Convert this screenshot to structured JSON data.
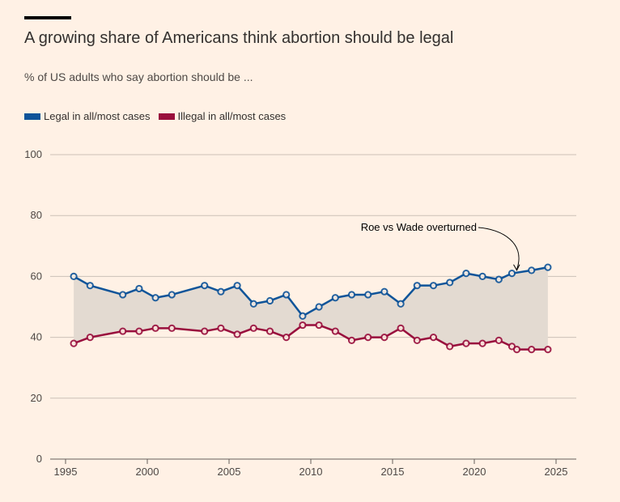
{
  "title": "A growing share of Americans think abortion should be legal",
  "subtitle": "% of US adults who say abortion should be ...",
  "colors": {
    "legal": "#0F5499",
    "illegal": "#990F3D",
    "band": "#E3DAD1",
    "grid": "#CCC1B7",
    "marker_fill": "#FFF1E5"
  },
  "chart_data": {
    "type": "line",
    "xlim": [
      1994,
      2026.5
    ],
    "ylim": [
      0,
      100
    ],
    "x_ticks": [
      1995,
      2000,
      2005,
      2010,
      2015,
      2020,
      2025
    ],
    "y_ticks": [
      0,
      20,
      40,
      60,
      80,
      100
    ],
    "legend_position": "top-left",
    "grid": true,
    "series": [
      {
        "name": "Legal in all/most cases",
        "color": "#0F5499",
        "x": [
          1995.5,
          1996.5,
          1998.5,
          1999.5,
          2000.5,
          2001.5,
          2003.5,
          2004.5,
          2005.5,
          2006.5,
          2007.5,
          2008.5,
          2009.5,
          2010.5,
          2011.5,
          2012.5,
          2013.5,
          2014.5,
          2015.5,
          2016.5,
          2017.5,
          2018.5,
          2019.5,
          2020.5,
          2021.5,
          2022.3,
          2023.5,
          2024.5
        ],
        "y": [
          60,
          57,
          54,
          56,
          53,
          54,
          57,
          55,
          57,
          51,
          52,
          54,
          47,
          50,
          53,
          54,
          54,
          55,
          51,
          57,
          57,
          58,
          61,
          60,
          59,
          61,
          62,
          63
        ]
      },
      {
        "name": "Illegal in all/most cases",
        "color": "#990F3D",
        "x": [
          1995.5,
          1996.5,
          1998.5,
          1999.5,
          2000.5,
          2001.5,
          2003.5,
          2004.5,
          2005.5,
          2006.5,
          2007.5,
          2008.5,
          2009.5,
          2010.5,
          2011.5,
          2012.5,
          2013.5,
          2014.5,
          2015.5,
          2016.5,
          2017.5,
          2018.5,
          2019.5,
          2020.5,
          2021.5,
          2022.3,
          2022.6,
          2023.5,
          2024.5
        ],
        "y": [
          38,
          40,
          42,
          42,
          43,
          43,
          42,
          43,
          41,
          43,
          42,
          40,
          44,
          44,
          42,
          39,
          40,
          40,
          43,
          39,
          40,
          37,
          38,
          38,
          39,
          37,
          36,
          36,
          36
        ]
      }
    ],
    "annotations": [
      {
        "text": "Roe vs Wade overturned",
        "x": 2022.6,
        "y": 61.5
      }
    ]
  }
}
